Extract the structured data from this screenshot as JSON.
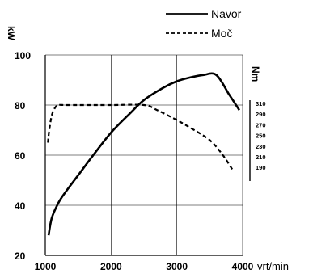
{
  "chart_data": {
    "type": "line",
    "x_unit": "vrt/min",
    "y_unit": "kW",
    "y2_unit": "Nm",
    "xlim": [
      1000,
      4000
    ],
    "ylim": [
      20,
      100
    ],
    "x_ticks": [
      "1000",
      "2000",
      "3000",
      "4000"
    ],
    "y_ticks": [
      "20",
      "40",
      "60",
      "80",
      "100"
    ],
    "y2_ticks": [
      "310",
      "290",
      "270",
      "250",
      "230",
      "210",
      "190"
    ],
    "grid": true,
    "legend_position": "top-right",
    "series": [
      {
        "name": "Navor",
        "style": "solid",
        "x": [
          1050,
          1100,
          1200,
          1300,
          1500,
          1700,
          2000,
          2300,
          2500,
          2800,
          3000,
          3200,
          3400,
          3600,
          3800,
          3950
        ],
        "y": [
          28,
          35,
          41,
          45,
          52,
          59,
          69,
          77,
          82,
          87,
          89.5,
          91,
          92,
          92,
          84,
          78
        ]
      },
      {
        "name": "Moč",
        "style": "dashed",
        "x": [
          1040,
          1060,
          1100,
          1150,
          1200,
          1300,
          1500,
          2000,
          2500,
          2700,
          3000,
          3200,
          3500,
          3700,
          3850
        ],
        "y": [
          65,
          70,
          76,
          79,
          80,
          80,
          80,
          80,
          80,
          78,
          74,
          71,
          66,
          60,
          54
        ]
      }
    ]
  }
}
